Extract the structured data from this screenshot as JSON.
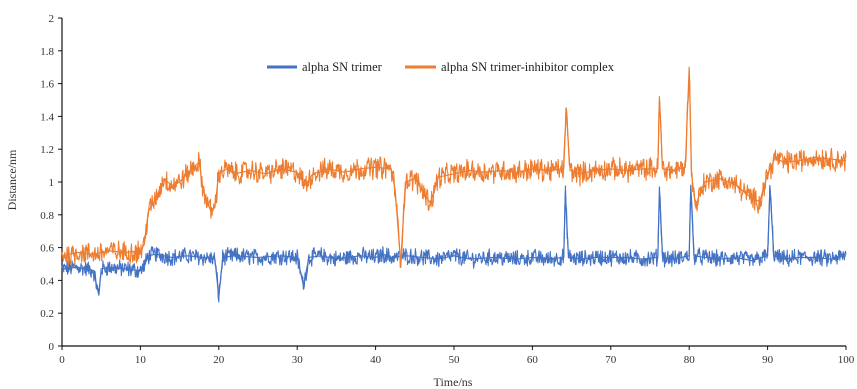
{
  "chart_data": {
    "type": "line",
    "title": "",
    "xlabel": "Time/ns",
    "ylabel": "Distance/nm",
    "xlim": [
      0,
      100
    ],
    "ylim": [
      0,
      2
    ],
    "x_ticks": [
      "0",
      "10",
      "20",
      "30",
      "40",
      "50",
      "60",
      "70",
      "80",
      "90",
      "100"
    ],
    "y_ticks": [
      "0",
      "0.2",
      "0.4",
      "0.6",
      "0.8",
      "1",
      "1.2",
      "1.4",
      "1.6",
      "1.8",
      "2"
    ],
    "grid": false,
    "legend_position": "top-center",
    "series": [
      {
        "name": "alpha SN trimer",
        "color": "#4472C4",
        "x": [
          0,
          2,
          4,
          4.7,
          5,
          6,
          8,
          10,
          10.5,
          11,
          12,
          14,
          16,
          18,
          19.5,
          20,
          20.5,
          22,
          25,
          28,
          30,
          30.8,
          31.5,
          33,
          35,
          38,
          40,
          41,
          42,
          44,
          46,
          48,
          50,
          52,
          55,
          58,
          60,
          62,
          64,
          64.2,
          64.6,
          66,
          68,
          70,
          72,
          74,
          76,
          76.2,
          76.6,
          78,
          80,
          80.2,
          80.6,
          82,
          84,
          86,
          88,
          90,
          90.3,
          90.8,
          92,
          94,
          96,
          98,
          100
        ],
        "y": [
          0.47,
          0.48,
          0.46,
          0.31,
          0.47,
          0.48,
          0.47,
          0.46,
          0.49,
          0.55,
          0.56,
          0.54,
          0.55,
          0.54,
          0.53,
          0.3,
          0.54,
          0.55,
          0.54,
          0.55,
          0.54,
          0.37,
          0.54,
          0.55,
          0.53,
          0.55,
          0.54,
          0.56,
          0.54,
          0.55,
          0.54,
          0.53,
          0.55,
          0.53,
          0.54,
          0.53,
          0.54,
          0.53,
          0.54,
          0.94,
          0.54,
          0.53,
          0.54,
          0.54,
          0.54,
          0.53,
          0.54,
          0.97,
          0.54,
          0.53,
          0.55,
          0.98,
          0.55,
          0.54,
          0.53,
          0.54,
          0.52,
          0.55,
          0.97,
          0.55,
          0.53,
          0.54,
          0.54,
          0.53,
          0.55
        ]
      },
      {
        "name": "alpha SN trimer-inhibitor complex",
        "color": "#ED7D31",
        "x": [
          0,
          2,
          4,
          6,
          8,
          10,
          10.5,
          11,
          12,
          13,
          14,
          15,
          16,
          17,
          17.5,
          18,
          19,
          19.5,
          20,
          21,
          22,
          24,
          26,
          28,
          30,
          31,
          32,
          34,
          36,
          38,
          40,
          42,
          42.5,
          43.2,
          43.8,
          45,
          46,
          47,
          48,
          50,
          52,
          54,
          56,
          58,
          60,
          62,
          64,
          64.3,
          64.8,
          66,
          68,
          70,
          72,
          74,
          76,
          76.2,
          76.6,
          78,
          79.5,
          80,
          80.3,
          80.8,
          81.5,
          82,
          84,
          86,
          88,
          89,
          90,
          91,
          92,
          94,
          96,
          98,
          100
        ],
        "y": [
          0.55,
          0.57,
          0.56,
          0.58,
          0.57,
          0.58,
          0.62,
          0.82,
          0.9,
          1.02,
          0.98,
          1.0,
          1.05,
          1.1,
          1.12,
          0.95,
          0.82,
          0.85,
          1.05,
          1.08,
          1.05,
          1.07,
          1.05,
          1.08,
          1.06,
          0.98,
          1.05,
          1.08,
          1.06,
          1.08,
          1.09,
          1.08,
          0.95,
          0.5,
          1.0,
          1.02,
          0.95,
          0.87,
          1.03,
          1.05,
          1.07,
          1.06,
          1.07,
          1.06,
          1.08,
          1.07,
          1.08,
          1.45,
          1.07,
          1.05,
          1.07,
          1.08,
          1.07,
          1.08,
          1.08,
          1.52,
          1.08,
          1.07,
          1.09,
          1.7,
          1.05,
          0.85,
          0.95,
          1.0,
          1.02,
          0.98,
          0.9,
          0.88,
          1.05,
          1.15,
          1.12,
          1.13,
          1.15,
          1.14,
          1.13
        ]
      }
    ]
  }
}
